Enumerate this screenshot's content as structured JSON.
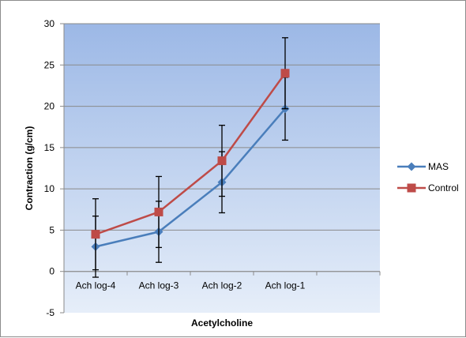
{
  "chart_data": {
    "type": "line",
    "title": "",
    "xlabel": "Acetylcholine",
    "ylabel": "Contraction (g/cm)",
    "categories": [
      "Ach log-4",
      "Ach log-3",
      "Ach log-2",
      "Ach log-1"
    ],
    "ylim": [
      -5,
      30
    ],
    "yticks": [
      -5,
      0,
      5,
      10,
      15,
      20,
      25,
      30
    ],
    "ytick_labels": [
      "-5",
      "0",
      "5",
      "10",
      "15",
      "20",
      "25",
      "30"
    ],
    "grid": true,
    "legend_position": "right",
    "series": [
      {
        "name": "MAS",
        "values": [
          3.0,
          4.8,
          10.8,
          19.7
        ],
        "error": [
          3.7,
          3.7,
          3.7,
          3.8
        ],
        "color": "#4a7ebb",
        "marker": "diamond"
      },
      {
        "name": "Control",
        "values": [
          4.5,
          7.2,
          13.4,
          24.0
        ],
        "error": [
          4.3,
          4.3,
          4.3,
          4.3
        ],
        "color": "#be4b48",
        "marker": "square"
      }
    ],
    "plot_background": [
      "#9cb8e6",
      "#e6eef9"
    ]
  }
}
